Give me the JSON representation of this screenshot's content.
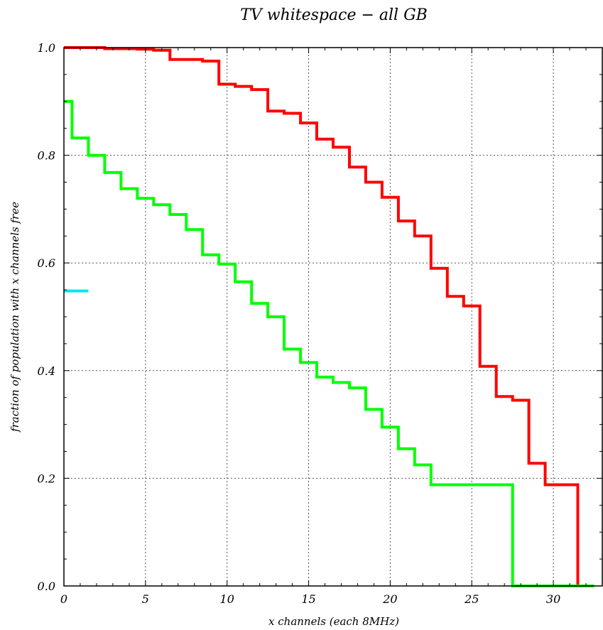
{
  "chart_data": {
    "type": "line",
    "title": "TV whitespace − all GB",
    "xlabel": "x channels (each 8MHz)",
    "ylabel": "fraction of population with x channels free",
    "xlim": [
      0,
      33
    ],
    "ylim": [
      0,
      1
    ],
    "xticks": [
      0,
      5,
      10,
      15,
      20,
      25,
      30
    ],
    "yticks": [
      0.0,
      0.2,
      0.4,
      0.6,
      0.8,
      1.0
    ],
    "xtick_labels": [
      "0",
      "5",
      "10",
      "15",
      "20",
      "25",
      "30"
    ],
    "ytick_labels": [
      "0.0",
      "0.2",
      "0.4",
      "0.6",
      "0.8",
      "1.0"
    ],
    "grid": true,
    "step": "centered",
    "series": [
      {
        "color": "#ff0000",
        "x": [
          0,
          1,
          2,
          3,
          4,
          5,
          6,
          7,
          8,
          9,
          10,
          11,
          12,
          13,
          14,
          15,
          16,
          17,
          18,
          19,
          20,
          21,
          22,
          23,
          24,
          25,
          26,
          27,
          28,
          29,
          30,
          31,
          32
        ],
        "y": [
          1.0,
          1.0,
          1.0,
          0.998,
          0.998,
          0.997,
          0.995,
          0.978,
          0.978,
          0.975,
          0.932,
          0.928,
          0.922,
          0.882,
          0.878,
          0.86,
          0.83,
          0.815,
          0.778,
          0.75,
          0.722,
          0.678,
          0.65,
          0.59,
          0.538,
          0.52,
          0.408,
          0.352,
          0.345,
          0.228,
          0.188,
          0.188,
          0.0
        ]
      },
      {
        "color": "#00ff00",
        "x": [
          0,
          1,
          2,
          3,
          4,
          5,
          6,
          7,
          8,
          9,
          10,
          11,
          12,
          13,
          14,
          15,
          16,
          17,
          18,
          19,
          20,
          21,
          22,
          23,
          24,
          25,
          26,
          27,
          28,
          29,
          30,
          31,
          32
        ],
        "y": [
          0.9,
          0.832,
          0.8,
          0.768,
          0.738,
          0.72,
          0.708,
          0.69,
          0.662,
          0.615,
          0.598,
          0.565,
          0.525,
          0.5,
          0.44,
          0.415,
          0.388,
          0.378,
          0.368,
          0.328,
          0.295,
          0.255,
          0.225,
          0.188,
          0.188,
          0.188,
          0.188,
          0.188,
          0.0,
          0.0,
          0.0,
          0.0,
          0.0
        ]
      },
      {
        "color": "#00e5ee",
        "x": [
          0,
          1
        ],
        "y": [
          0.548,
          0.548
        ]
      }
    ]
  }
}
